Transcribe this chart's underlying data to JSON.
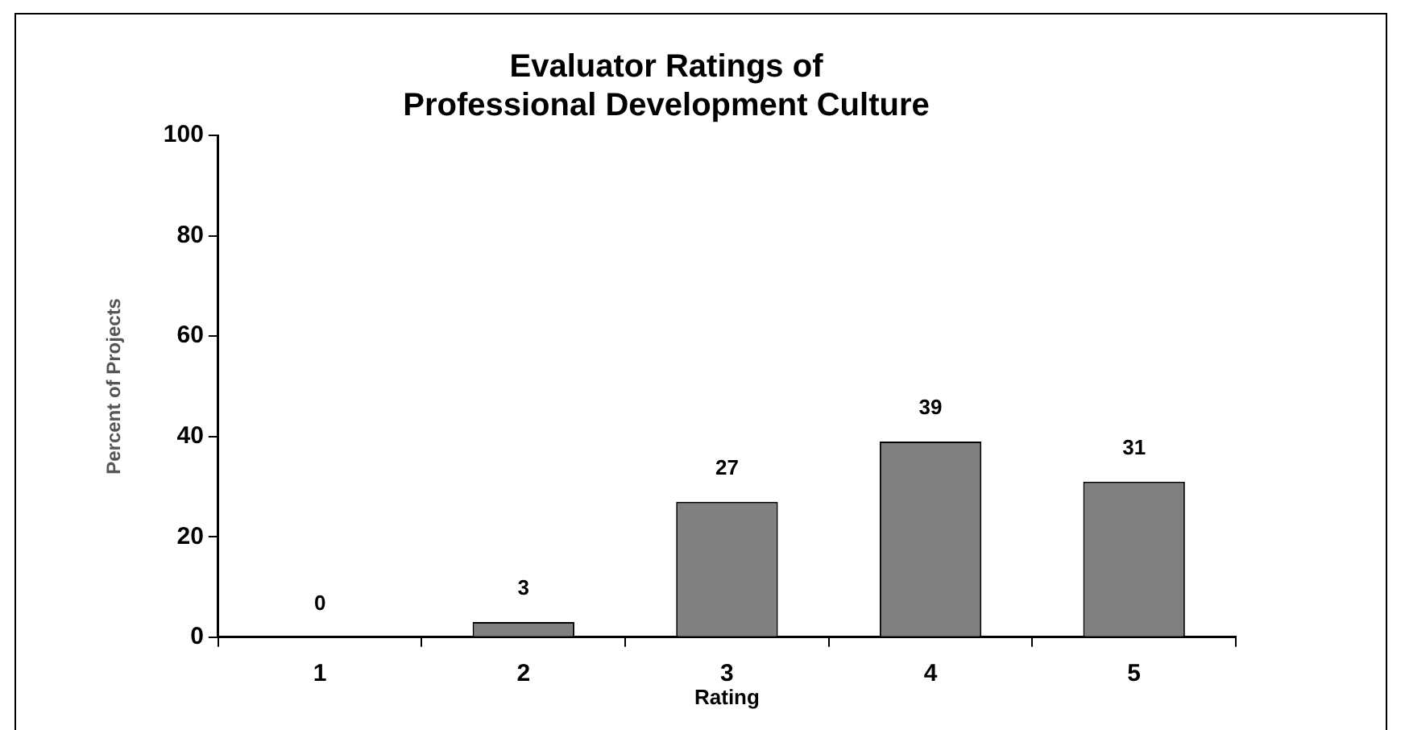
{
  "chart_data": {
    "type": "bar",
    "title": "Evaluator Ratings of\nProfessional Development Culture",
    "xlabel": "Rating",
    "ylabel": "Percent of Projects",
    "categories": [
      "1",
      "2",
      "3",
      "4",
      "5"
    ],
    "values": [
      0,
      3,
      27,
      39,
      31
    ],
    "color": "#808080",
    "ylim": [
      0,
      100
    ],
    "yticks": [
      0,
      20,
      40,
      60,
      80,
      100
    ],
    "data_labels": true,
    "grid": false,
    "legend": false
  }
}
